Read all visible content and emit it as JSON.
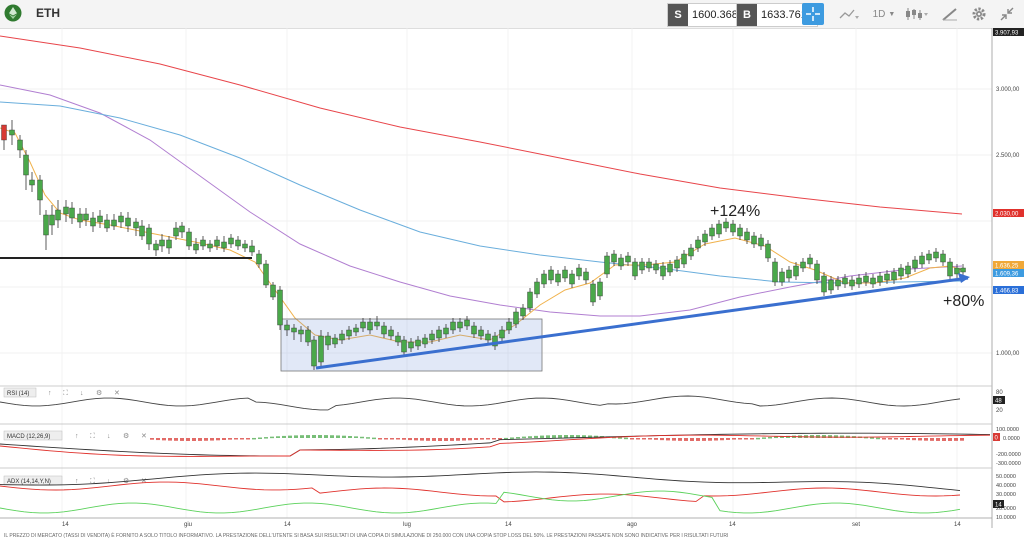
{
  "topbar": {
    "symbol": "ETH",
    "sell_label": "S",
    "sell_price": "1600.3683",
    "buy_label": "B",
    "buy_price": "1633.7610",
    "timeframe": "1D"
  },
  "price_axis": {
    "labels": [
      "3.000,00",
      "2.500,00",
      "1.000,00"
    ],
    "top_badge": "3.907,93",
    "badges": [
      {
        "text": "2.030,00",
        "color": "#e0312c"
      },
      {
        "text": "1.636,25",
        "color": "#f0a838"
      },
      {
        "text": "1.609,36",
        "color": "#3d9be0"
      },
      {
        "text": "1.466,83",
        "color": "#2a6fd8"
      }
    ]
  },
  "time_axis": [
    "14",
    "giu",
    "14",
    "lug",
    "14",
    "ago",
    "14",
    "set",
    "14"
  ],
  "annotations": [
    "+124%",
    "+80%"
  ],
  "indicators": {
    "rsi": {
      "label": "RSI (14)",
      "levels": [
        "80",
        "20"
      ],
      "value_badge": "48"
    },
    "macd": {
      "label": "MACD (12,26,9)",
      "levels": [
        "100.0000",
        "0.0000",
        "-200.0000",
        "-300.0000"
      ],
      "value_badge": "0"
    },
    "adx": {
      "label": "ADX (14,14,Y,N)",
      "levels": [
        "50.0000",
        "40.0000",
        "30.0000",
        "20.0000",
        "10.0000"
      ],
      "value_badge": "14"
    }
  },
  "footer": "IL PREZZO DI MERCATO (TASSI DI VENDITA) È FORNITO A SOLO TITOLO INFORMATIVO. LA PRESTAZIONE DELL'UTENTE SI BASA SUI RISULTATI DI UNA COPIA DI SIMULAZIONE DI 250.000 CON UNA COPIA STOP LOSS DEL 50%. LE PRESTAZIONI PASSATE NON SONO INDICATIVE PER I RISULTATI FUTURI",
  "colors": {
    "bull": "#4aa84a",
    "bear": "#d83a34",
    "ma_red": "#e8454a",
    "ma_violet": "#b17fd1",
    "ma_blue": "#6aaedc",
    "ma_orange": "#f0b24c",
    "trend": "#3a6fcf"
  }
}
